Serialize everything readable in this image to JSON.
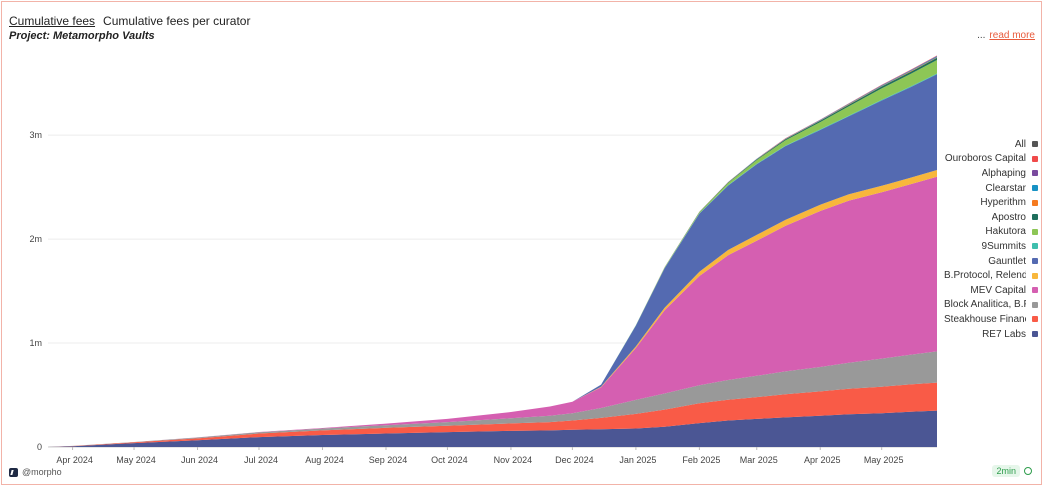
{
  "header": {
    "title": "Cumulative fees",
    "subtitle": "Cumulative fees per curator",
    "project": "Project: Metamorpho Vaults",
    "ellipsis": "...",
    "read_more": "read more"
  },
  "footer": {
    "source": "@morpho",
    "refresh": "2min"
  },
  "chart_data": {
    "type": "area",
    "stacked": true,
    "grid": true,
    "legend_position": "right",
    "title": "Cumulative fees per curator",
    "xlabel": "",
    "ylabel": "",
    "ylim": [
      0,
      3800000
    ],
    "y_ticks": [
      0,
      1000000,
      2000000,
      3000000
    ],
    "y_tick_labels": [
      "0",
      "1m",
      "2m",
      "3m"
    ],
    "x_tick_labels": [
      "Apr 2024",
      "May 2024",
      "Jun 2024",
      "Jul 2024",
      "Aug 2024",
      "Sep 2024",
      "Oct 2024",
      "Nov 2024",
      "Dec 2024",
      "Jan 2025",
      "Feb 2025",
      "Mar 2025",
      "Apr 2025",
      "May 2025"
    ],
    "x": [
      "2024-03-20",
      "2024-04-01",
      "2024-05-01",
      "2024-06-01",
      "2024-07-01",
      "2024-08-01",
      "2024-09-01",
      "2024-10-01",
      "2024-11-01",
      "2024-11-20",
      "2024-12-01",
      "2024-12-15",
      "2025-01-01",
      "2025-01-15",
      "2025-02-01",
      "2025-02-15",
      "2025-03-01",
      "2025-03-15",
      "2025-04-01",
      "2025-04-15",
      "2025-05-01",
      "2025-05-15",
      "2025-05-28"
    ],
    "series": [
      {
        "name": "RE7 Labs",
        "color": "#4b5694",
        "values": [
          0,
          8000,
          38000,
          65000,
          95000,
          115000,
          130000,
          143000,
          155000,
          160000,
          165000,
          170000,
          178000,
          195000,
          230000,
          255000,
          270000,
          285000,
          300000,
          315000,
          325000,
          340000,
          350000
        ]
      },
      {
        "name": "Steakhouse Financial",
        "color": "#f95b47",
        "values": [
          0,
          2000,
          7000,
          18000,
          35000,
          45000,
          55000,
          62000,
          72000,
          80000,
          90000,
          110000,
          140000,
          165000,
          190000,
          200000,
          210000,
          222000,
          235000,
          245000,
          255000,
          262000,
          270000
        ]
      },
      {
        "name": "Block Analitica, B.Protocol",
        "color": "#999999",
        "values": [
          0,
          1000,
          3000,
          8000,
          12000,
          18000,
          25000,
          35000,
          50000,
          60000,
          70000,
          95000,
          135000,
          155000,
          175000,
          190000,
          205000,
          220000,
          235000,
          250000,
          270000,
          285000,
          300000
        ]
      },
      {
        "name": "MEV Capital",
        "color": "#d55fb1",
        "values": [
          0,
          0,
          0,
          1000,
          2000,
          5000,
          15000,
          30000,
          60000,
          90000,
          110000,
          200000,
          500000,
          800000,
          1050000,
          1200000,
          1300000,
          1400000,
          1500000,
          1560000,
          1600000,
          1640000,
          1680000
        ]
      },
      {
        "name": "B.Protocol, Relend",
        "color": "#f8b73c",
        "values": [
          0,
          0,
          0,
          0,
          0,
          0,
          0,
          0,
          0,
          0,
          0,
          5000,
          15000,
          25000,
          40000,
          50000,
          55000,
          58000,
          60000,
          62000,
          63000,
          64000,
          65000
        ]
      },
      {
        "name": "Gauntlet",
        "color": "#546ab1",
        "values": [
          0,
          0,
          0,
          0,
          0,
          0,
          0,
          0,
          0,
          0,
          0,
          20000,
          200000,
          380000,
          560000,
          620000,
          680000,
          710000,
          720000,
          750000,
          820000,
          870000,
          920000
        ]
      },
      {
        "name": "9Summits",
        "color": "#3fbfad",
        "values": [
          0,
          0,
          0,
          0,
          0,
          0,
          0,
          0,
          0,
          0,
          0,
          0,
          2000,
          3000,
          4000,
          5000,
          5000,
          5000,
          6000,
          6000,
          7000,
          7000,
          8000
        ]
      },
      {
        "name": "Hakutora",
        "color": "#8dc656",
        "values": [
          0,
          0,
          0,
          0,
          0,
          0,
          0,
          0,
          0,
          0,
          0,
          0,
          2000,
          5000,
          10000,
          20000,
          35000,
          50000,
          70000,
          90000,
          110000,
          120000,
          130000
        ]
      },
      {
        "name": "Apostro",
        "color": "#1f6f5c",
        "values": [
          0,
          0,
          0,
          0,
          0,
          0,
          0,
          0,
          0,
          0,
          0,
          0,
          1000,
          2000,
          3000,
          5000,
          7000,
          10000,
          12000,
          15000,
          18000,
          20000,
          22000
        ]
      },
      {
        "name": "Hyperithm",
        "color": "#f57b20",
        "values": [
          0,
          0,
          0,
          0,
          0,
          0,
          0,
          0,
          0,
          0,
          0,
          0,
          0,
          1000,
          1000,
          2000,
          2000,
          3000,
          3000,
          4000,
          4000,
          5000,
          5000
        ]
      },
      {
        "name": "Clearstar",
        "color": "#1792c4",
        "values": [
          0,
          0,
          0,
          0,
          0,
          0,
          0,
          0,
          0,
          0,
          0,
          0,
          0,
          0,
          500,
          1000,
          2000,
          3000,
          4000,
          5000,
          6000,
          7000,
          8000
        ]
      },
      {
        "name": "Alphaping",
        "color": "#7a4a9e",
        "values": [
          0,
          0,
          0,
          0,
          0,
          0,
          0,
          0,
          0,
          0,
          0,
          0,
          0,
          0,
          500,
          1000,
          1500,
          2000,
          2500,
          3000,
          3500,
          4000,
          4500
        ]
      },
      {
        "name": "Ouroboros Capital",
        "color": "#f04a4a",
        "values": [
          0,
          0,
          0,
          0,
          0,
          0,
          0,
          0,
          0,
          0,
          0,
          0,
          0,
          0,
          0,
          500,
          1000,
          1500,
          2000,
          2500,
          3000,
          3500,
          4000
        ]
      },
      {
        "name": "All",
        "color": "#555555",
        "values": [
          0,
          0,
          0,
          0,
          0,
          0,
          0,
          0,
          0,
          0,
          0,
          0,
          0,
          0,
          0,
          0,
          0,
          0,
          0,
          0,
          0,
          0,
          0
        ]
      }
    ],
    "legend_entries": [
      "All",
      "Ouroboros Capital",
      "Alphaping",
      "Clearstar",
      "Hyperithm",
      "Apostro",
      "Hakutora",
      "9Summits",
      "Gauntlet",
      "B.Protocol, Relend",
      "MEV Capital",
      "Block Analitica, B.Protocol",
      "Steakhouse Financial",
      "RE7 Labs"
    ]
  }
}
